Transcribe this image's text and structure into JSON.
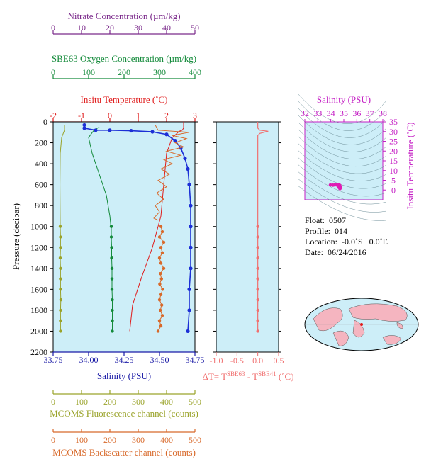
{
  "colors": {
    "nitrate": "#7b2a8b",
    "oxygen": "#138a3a",
    "temperature": "#e01b1b",
    "salinity": "#1a1aa6",
    "profile_salinity": "#1c2fd6",
    "fluorescence": "#9aa32a",
    "backscatter": "#d8692a",
    "delta_t": "#f07070",
    "ts_axis": "#c41ec4",
    "plot_bg": "#cdeef8",
    "land": "#f5b5c0",
    "ocean": "#cdeef8"
  },
  "info": {
    "float": "Float:  0507",
    "profile": "Profile:  014",
    "location": "Location:  -0.0˚S   0.0˚E",
    "date": "Date:  06/24/2016"
  },
  "chart_data": [
    {
      "id": "main_profile",
      "type": "line",
      "ylabel": "Pressure (decibar)",
      "ylim": [
        2200,
        0
      ],
      "yticks": [
        0,
        200,
        400,
        600,
        800,
        1000,
        1200,
        1400,
        1600,
        1800,
        2000,
        2200
      ],
      "axes": {
        "nitrate": {
          "label": "Nitrate Concentration (µm/kg)",
          "range": [
            0,
            50
          ],
          "ticks": [
            0,
            10,
            20,
            30,
            40,
            50
          ]
        },
        "oxygen": {
          "label": "SBE63 Oxygen Concentration (µm/kg)",
          "range": [
            0,
            400
          ],
          "ticks": [
            0,
            100,
            200,
            300,
            400
          ]
        },
        "temperature": {
          "label": "Insitu Temperature (˚C)",
          "range": [
            -2,
            3
          ],
          "ticks": [
            -2,
            -1,
            0,
            1,
            2,
            3
          ]
        },
        "salinity": {
          "label": "Salinity (PSU)",
          "range": [
            33.75,
            34.75
          ],
          "ticks": [
            "33.75",
            "34.00",
            "34.25",
            "34.50",
            "34.75"
          ]
        },
        "fluorescence": {
          "label": "MCOMS Fluorescence channel (counts)",
          "range": [
            0,
            500
          ],
          "ticks": [
            0,
            100,
            200,
            300,
            400,
            500
          ]
        },
        "backscatter": {
          "label": "MCOMS Backscatter channel (counts)",
          "range": [
            0,
            500
          ],
          "ticks": [
            0,
            100,
            200,
            300,
            400,
            500
          ]
        }
      },
      "series": [
        {
          "key": "temperature",
          "name": "Insitu Temperature",
          "style": "line",
          "points": [
            [
              2.6,
              0
            ],
            [
              2.6,
              60
            ],
            [
              2.55,
              80
            ],
            [
              2.45,
              90
            ],
            [
              2.2,
              150
            ],
            [
              2.0,
              300
            ],
            [
              1.9,
              600
            ],
            [
              1.8,
              900
            ],
            [
              1.5,
              1200
            ],
            [
              1.1,
              1500
            ],
            [
              0.8,
              1750
            ],
            [
              0.7,
              2000
            ]
          ]
        },
        {
          "key": "oxygen",
          "name": "SBE63 Oxygen",
          "style": "line",
          "points": [
            [
              130,
              50
            ],
            [
              115,
              80
            ],
            [
              100,
              150
            ],
            [
              110,
              300
            ],
            [
              130,
              500
            ],
            [
              150,
              700
            ],
            [
              160,
              900
            ],
            [
              163,
              1000
            ]
          ]
        },
        {
          "key": "oxygen",
          "name": "SBE63 Oxygen",
          "style": "dots",
          "points": [
            [
              164,
              1000
            ],
            [
              164,
              1100
            ],
            [
              165,
              1200
            ],
            [
              165,
              1300
            ],
            [
              166,
              1400
            ],
            [
              166,
              1500
            ],
            [
              166,
              1600
            ],
            [
              167,
              1700
            ],
            [
              167,
              1800
            ],
            [
              167,
              1900
            ],
            [
              167,
              2000
            ]
          ]
        },
        {
          "key": "fluorescence",
          "name": "MCOMS Fluorescence",
          "style": "line",
          "points": [
            [
              40,
              30
            ],
            [
              40,
              80
            ],
            [
              30,
              150
            ],
            [
              25,
              300
            ],
            [
              24,
              600
            ],
            [
              25,
              1000
            ]
          ]
        },
        {
          "key": "fluorescence",
          "name": "MCOMS Fluorescence",
          "style": "dots",
          "points": [
            [
              25,
              1000
            ],
            [
              26,
              1100
            ],
            [
              26,
              1200
            ],
            [
              25,
              1300
            ],
            [
              26,
              1400
            ],
            [
              26,
              1500
            ],
            [
              26,
              1600
            ],
            [
              27,
              1700
            ],
            [
              26,
              1800
            ],
            [
              26,
              1900
            ],
            [
              26,
              2000
            ]
          ]
        },
        {
          "key": "salinity",
          "name": "Salinity",
          "style": "line-dots",
          "points": [
            [
              33.97,
              30
            ],
            [
              33.97,
              60
            ],
            [
              34.05,
              80
            ],
            [
              34.15,
              80
            ],
            [
              34.3,
              85
            ],
            [
              34.45,
              95
            ],
            [
              34.55,
              120
            ],
            [
              34.61,
              180
            ],
            [
              34.65,
              250
            ],
            [
              34.68,
              350
            ],
            [
              34.7,
              450
            ],
            [
              34.71,
              600
            ],
            [
              34.72,
              800
            ],
            [
              34.72,
              1000
            ],
            [
              34.72,
              1200
            ],
            [
              34.72,
              1400
            ],
            [
              34.71,
              1600
            ],
            [
              34.71,
              1800
            ],
            [
              34.7,
              2000
            ]
          ]
        },
        {
          "key": "backscatter",
          "name": "MCOMS Backscatter",
          "style": "spiky",
          "points": [
            [
              360,
              30
            ],
            [
              370,
              80
            ],
            [
              480,
              100
            ],
            [
              420,
              130
            ],
            [
              470,
              160
            ],
            [
              430,
              200
            ],
            [
              460,
              240
            ],
            [
              400,
              280
            ],
            [
              450,
              320
            ],
            [
              390,
              360
            ],
            [
              420,
              400
            ],
            [
              380,
              450
            ],
            [
              410,
              500
            ],
            [
              370,
              560
            ],
            [
              400,
              620
            ],
            [
              365,
              680
            ],
            [
              390,
              740
            ],
            [
              360,
              800
            ],
            [
              375,
              860
            ],
            [
              355,
              920
            ],
            [
              370,
              940
            ]
          ]
        },
        {
          "key": "backscatter",
          "name": "MCOMS Backscatter",
          "style": "dots",
          "points": [
            [
              380,
              1000
            ],
            [
              385,
              1050
            ],
            [
              375,
              1100
            ],
            [
              390,
              1150
            ],
            [
              380,
              1200
            ],
            [
              385,
              1250
            ],
            [
              375,
              1300
            ],
            [
              380,
              1350
            ],
            [
              390,
              1400
            ],
            [
              378,
              1450
            ],
            [
              382,
              1500
            ],
            [
              376,
              1550
            ],
            [
              386,
              1600
            ],
            [
              380,
              1650
            ],
            [
              375,
              1700
            ],
            [
              383,
              1750
            ],
            [
              378,
              1800
            ],
            [
              385,
              1850
            ],
            [
              375,
              1900
            ],
            [
              380,
              1950
            ],
            [
              370,
              2000
            ]
          ]
        }
      ]
    },
    {
      "id": "delta_t",
      "type": "line",
      "xlabel": "ΔT= T",
      "xlabel_sup1": "SBE63",
      "xlabel_mid": " - T",
      "xlabel_sup2": "SBE41",
      "xlabel_unit": " (˚C)",
      "xlim": [
        -1.0,
        0.5
      ],
      "xticks": [
        "-1.0",
        "-0.5",
        "0.0",
        "0.5"
      ],
      "ylim": [
        2200,
        0
      ],
      "series": [
        {
          "name": "ΔT",
          "style": "line",
          "points": [
            [
              0,
              0
            ],
            [
              0,
              60
            ],
            [
              0.05,
              80
            ],
            [
              0.25,
              90
            ],
            [
              0.05,
              110
            ],
            [
              0,
              130
            ],
            [
              0,
              2000
            ]
          ]
        },
        {
          "name": "ΔT",
          "style": "dots",
          "points": [
            [
              0,
              1000
            ],
            [
              0,
              1100
            ],
            [
              0,
              1200
            ],
            [
              0,
              1300
            ],
            [
              0,
              1400
            ],
            [
              0,
              1500
            ],
            [
              0,
              1600
            ],
            [
              0,
              1700
            ],
            [
              0,
              1800
            ],
            [
              0,
              1900
            ],
            [
              0,
              2000
            ]
          ]
        }
      ]
    },
    {
      "id": "ts_diagram",
      "type": "scatter",
      "xlabel": "Salinity (PSU)",
      "ylabel": "Insitu Temperature (˚C)",
      "xlim": [
        32,
        38
      ],
      "ylim": [
        -5,
        35
      ],
      "xticks": [
        32,
        33,
        34,
        35,
        36,
        37,
        38
      ],
      "yticks": [
        0,
        5,
        10,
        15,
        20,
        25,
        30,
        35
      ],
      "series": [
        {
          "name": "profile",
          "points": [
            [
              34.7,
              0.7
            ],
            [
              34.71,
              0.9
            ],
            [
              34.72,
              1.2
            ],
            [
              34.72,
              1.6
            ],
            [
              34.71,
              1.9
            ],
            [
              34.7,
              2.1
            ],
            [
              34.68,
              2.4
            ],
            [
              34.65,
              2.6
            ],
            [
              34.55,
              2.5
            ],
            [
              34.45,
              2.6
            ],
            [
              34.3,
              2.6
            ],
            [
              34.15,
              2.5
            ],
            [
              33.97,
              2.6
            ],
            [
              34.58,
              2.2
            ],
            [
              34.62,
              1.4
            ]
          ]
        }
      ]
    },
    {
      "id": "world_map",
      "type": "map",
      "location": [
        0.0,
        0.0
      ]
    }
  ]
}
